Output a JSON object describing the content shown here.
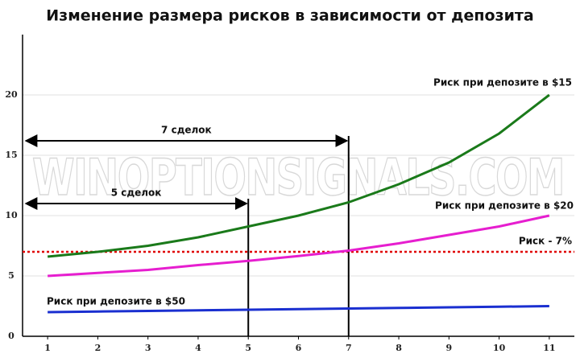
{
  "chart_data": {
    "type": "line",
    "title": "Изменение размера рисков в зависимости от депозита",
    "watermark": "WINOPTIONSIGNALS.COM",
    "x": [
      1,
      2,
      3,
      4,
      5,
      6,
      7,
      8,
      9,
      10,
      11
    ],
    "series": [
      {
        "name": "Риск при депозите в $15",
        "color": "#1a7a1a",
        "values": [
          6.6,
          7.0,
          7.5,
          8.2,
          9.1,
          10.0,
          11.1,
          12.6,
          14.4,
          16.8,
          20.0
        ]
      },
      {
        "name": "Риск при депозите в $20",
        "color": "#e61ecf",
        "values": [
          5.0,
          5.25,
          5.5,
          5.9,
          6.25,
          6.65,
          7.1,
          7.7,
          8.4,
          9.1,
          10.0
        ]
      },
      {
        "name": "Риск при депозите в $50",
        "color": "#1a2fd0",
        "values": [
          2.0,
          2.05,
          2.1,
          2.15,
          2.2,
          2.25,
          2.3,
          2.35,
          2.4,
          2.45,
          2.5
        ]
      }
    ],
    "reference_line": {
      "label": "Риск - 7%",
      "value": 7,
      "color": "#e00000"
    },
    "spans": [
      {
        "label": "5 сделок",
        "x": 5,
        "y": 11
      },
      {
        "label": "7 сделок",
        "x": 7,
        "y": 16.2
      }
    ],
    "xlim": [
      0.5,
      11.5
    ],
    "xticks": [
      1,
      2,
      3,
      4,
      5,
      6,
      7,
      8,
      9,
      10,
      11
    ],
    "ylim": [
      0,
      25
    ],
    "yticks": [
      0,
      5,
      10,
      15,
      20
    ],
    "grid": true
  }
}
